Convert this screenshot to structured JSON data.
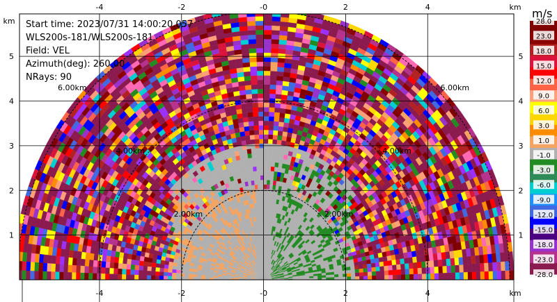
{
  "header": {
    "start_time": "Start time: 2023/07/31 14:00:20.057",
    "instrument": "WLS200s-181/WLS200s-181",
    "field": "Field: VEL",
    "azimuth": "Azimuth(deg): 260.00",
    "nrays": "NRays: 90"
  },
  "chart_data": {
    "type": "heatmap",
    "title": "",
    "xlabel": "km",
    "ylabel": "km",
    "xlim": [
      -5.95,
      6.1
    ],
    "ylim": [
      0,
      5.95
    ],
    "x_ticks": [
      "-4",
      "-2",
      "-0",
      "2",
      "4"
    ],
    "x_tick_values": [
      -4,
      -2,
      0,
      2,
      4
    ],
    "y_ticks": [
      "1",
      "2",
      "3",
      "4",
      "5"
    ],
    "y_tick_values": [
      1,
      2,
      3,
      4,
      5
    ],
    "axis_unit_labels": {
      "x_top": "km",
      "x_bottom": "km",
      "y_left": "km"
    },
    "range_rings": [
      {
        "label": "2.00km",
        "radius": 2.0
      },
      {
        "label": "4.00km",
        "radius": 4.0
      },
      {
        "label": "6.00km",
        "radius": 6.0
      }
    ],
    "max_range_km": 6.1,
    "grid": true,
    "colorbar": {
      "unit": "m/s",
      "tick_labels": [
        "-28.0",
        "-23.0",
        "-18.0",
        "-15.0",
        "-12.0",
        "-9.0",
        "-6.0",
        "-3.0",
        "-1.0",
        "1.0",
        "3.0",
        "6.0",
        "9.0",
        "12.0",
        "15.0",
        "18.0",
        "23.0",
        "28.0"
      ],
      "colors": [
        "#8b1a4f",
        "#b5338d",
        "#9932cc",
        "#4b0082",
        "#0000ff",
        "#4169e1",
        "#1e90ff",
        "#00ced1",
        "#2e8b57",
        "#228b22",
        "#b0b0b0",
        "#f4a460",
        "#ff8c00",
        "#ffd700",
        "#ffff00",
        "#ffa07a",
        "#ff6347",
        "#ff0000",
        "#dc143c",
        "#b22222",
        "#8b0000",
        "#800000"
      ]
    }
  }
}
